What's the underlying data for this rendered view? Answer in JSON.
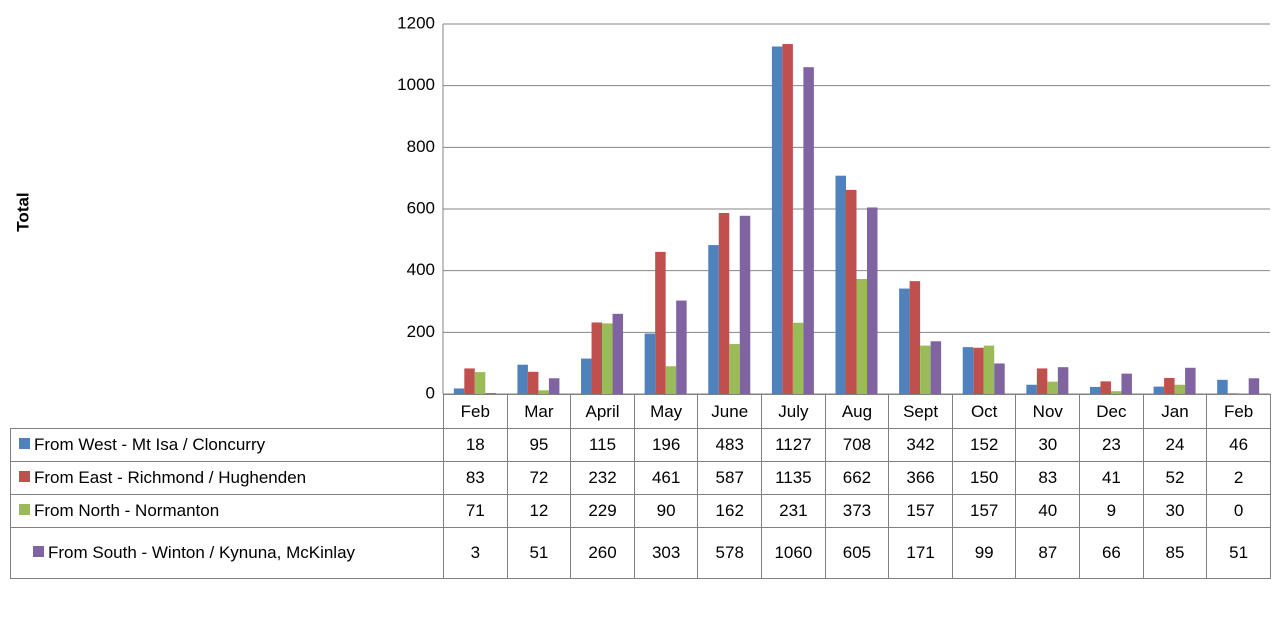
{
  "chart_data": {
    "type": "bar",
    "y_label": "Total",
    "categories": [
      "Feb",
      "Mar",
      "April",
      "May",
      "June",
      "July",
      "Aug",
      "Sept",
      "Oct",
      "Nov",
      "Dec",
      "Jan",
      "Feb"
    ],
    "series": [
      {
        "name": "From West - Mt Isa / Cloncurry",
        "color": "#4f81bd",
        "values": [
          18,
          95,
          115,
          196,
          483,
          1127,
          708,
          342,
          152,
          30,
          23,
          24,
          46
        ]
      },
      {
        "name": "From East - Richmond / Hughenden",
        "color": "#c0504d",
        "values": [
          83,
          72,
          232,
          461,
          587,
          1135,
          662,
          366,
          150,
          83,
          41,
          52,
          2
        ]
      },
      {
        "name": "From  North - Normanton",
        "color": "#9bbb59",
        "values": [
          71,
          12,
          229,
          90,
          162,
          231,
          373,
          157,
          157,
          40,
          9,
          30,
          0
        ]
      },
      {
        "name": "From South - Winton / Kynuna, McKinlay",
        "color": "#8064a2",
        "values": [
          3,
          51,
          260,
          303,
          578,
          1060,
          605,
          171,
          99,
          87,
          66,
          85,
          51
        ]
      }
    ],
    "ylim": [
      0,
      1200
    ],
    "yticks": [
      0,
      200,
      400,
      600,
      800,
      1000,
      1200
    ],
    "grid": true,
    "legend": "table"
  }
}
